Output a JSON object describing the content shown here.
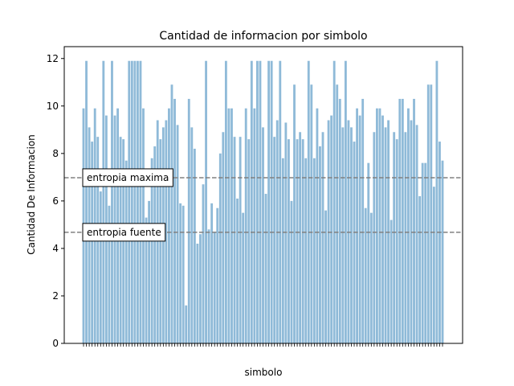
{
  "chart_data": {
    "type": "bar",
    "title": "Cantidad de informacion por simbolo",
    "xlabel": "simbolo",
    "ylabel": "Cantidad De Informacion",
    "ylim": [
      0,
      12.5
    ],
    "yticks": [
      0,
      2,
      4,
      6,
      8,
      10,
      12
    ],
    "bar_color": "#8fbad8",
    "line_color": "#808080",
    "values": [
      9.9,
      11.9,
      9.1,
      8.5,
      9.9,
      8.7,
      6.4,
      11.9,
      9.6,
      5.8,
      11.9,
      9.6,
      9.9,
      8.7,
      8.6,
      7.7,
      11.9,
      11.9,
      11.9,
      11.9,
      11.9,
      9.9,
      5.3,
      6.0,
      7.8,
      8.3,
      9.4,
      8.6,
      9.1,
      9.4,
      9.9,
      10.9,
      10.3,
      9.2,
      5.9,
      5.8,
      1.6,
      10.3,
      9.1,
      8.2,
      4.2,
      4.6,
      6.7,
      11.9,
      4.8,
      5.9,
      4.7,
      5.7,
      8.0,
      8.9,
      11.9,
      9.9,
      9.9,
      8.7,
      6.1,
      8.7,
      5.5,
      9.9,
      8.6,
      11.9,
      9.9,
      11.9,
      11.9,
      9.1,
      6.3,
      11.9,
      11.9,
      8.7,
      9.4,
      11.9,
      7.8,
      9.3,
      8.6,
      6.0,
      10.9,
      8.6,
      8.9,
      8.6,
      7.8,
      11.9,
      10.9,
      7.8,
      9.9,
      8.3,
      8.9,
      5.6,
      9.4,
      9.6,
      11.9,
      10.9,
      10.3,
      9.1,
      11.9,
      9.4,
      9.1,
      8.5,
      9.9,
      9.6,
      10.3,
      5.7,
      7.6,
      5.5,
      8.9,
      9.9,
      9.9,
      9.6,
      9.1,
      9.4,
      5.2,
      8.9,
      8.6,
      10.3,
      10.3,
      8.9,
      9.9,
      9.4,
      10.3,
      9.2,
      6.2,
      7.6,
      7.6,
      10.9,
      10.9,
      6.6,
      11.9,
      8.5,
      7.7
    ],
    "reference_lines": [
      {
        "label": "entropia maxima",
        "y": 6.98
      },
      {
        "label": "entropia fuente",
        "y": 4.68
      }
    ]
  }
}
